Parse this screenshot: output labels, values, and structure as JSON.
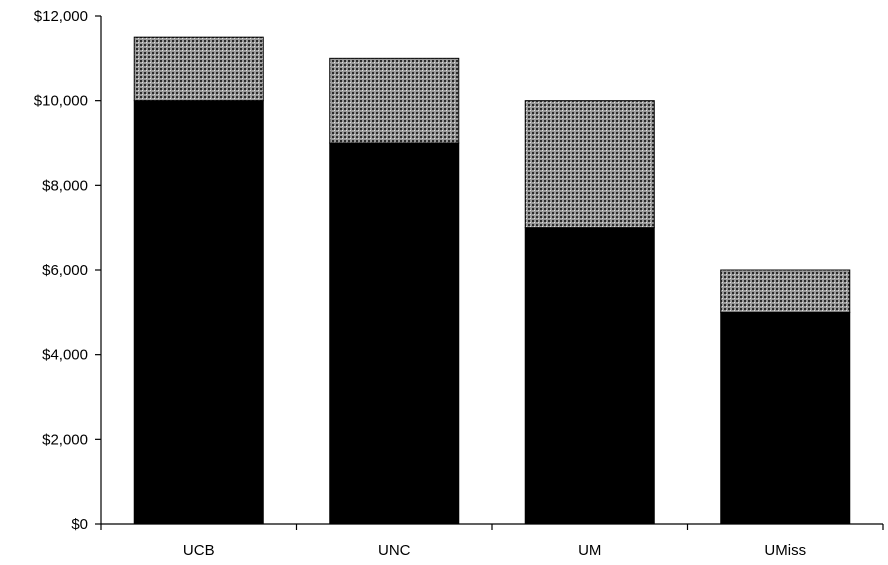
{
  "chart_data": {
    "type": "bar",
    "stacked": true,
    "categories": [
      "UCB",
      "UNC",
      "UM",
      "UMiss"
    ],
    "series": [
      {
        "values": [
          10000,
          9000,
          7000,
          5000
        ],
        "color": "#000000",
        "pattern": "solid"
      },
      {
        "values": [
          1500,
          2000,
          3000,
          1000
        ],
        "color": "#7f7f7f",
        "pattern": "fine-dots"
      }
    ],
    "ylim": [
      0,
      12000
    ],
    "yticks": [
      0,
      2000,
      4000,
      6000,
      8000,
      10000,
      12000
    ],
    "ytick_labels": [
      "$0",
      "$2,000",
      "$4,000",
      "$6,000",
      "$8,000",
      "$10,000",
      "$12,000"
    ],
    "title": "",
    "xlabel": "",
    "ylabel": "",
    "legend": "none",
    "grid": false
  }
}
